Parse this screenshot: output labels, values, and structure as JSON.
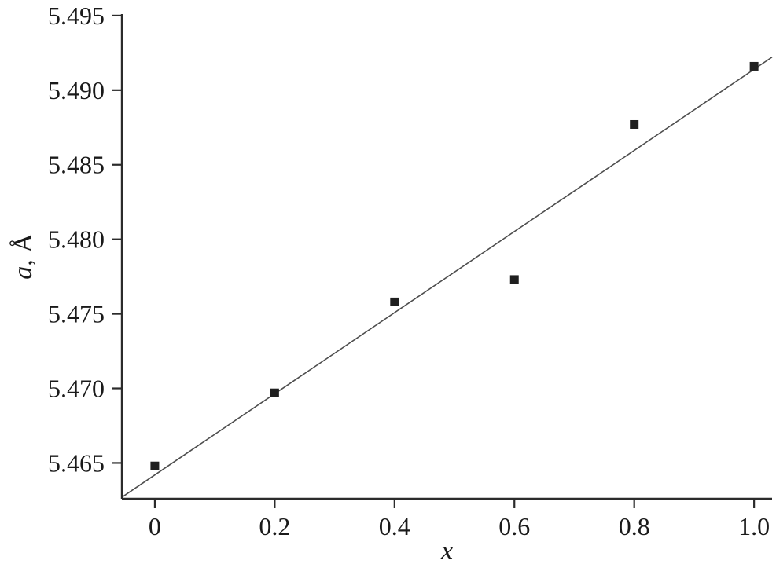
{
  "chart_data": {
    "type": "scatter",
    "title": "",
    "xlabel": "x",
    "ylabel": "a, Å",
    "ylabel_italic_part": "a",
    "ylabel_normal_part": ", Å",
    "x": [
      0,
      0.2,
      0.4,
      0.6,
      0.8,
      1.0
    ],
    "y": [
      5.4648,
      5.4697,
      5.4758,
      5.4773,
      5.4877,
      5.4916
    ],
    "fit_line": {
      "intercept": 5.4642,
      "slope": 0.0272
    },
    "xlim": [
      -0.055,
      1.03
    ],
    "ylim": [
      5.4626,
      5.4951
    ],
    "xticks": [
      0,
      0.2,
      0.4,
      0.6,
      0.8,
      1.0
    ],
    "xtick_labels": [
      "0",
      "0.2",
      "0.4",
      "0.6",
      "0.8",
      "1.0"
    ],
    "yticks": [
      5.465,
      5.47,
      5.475,
      5.48,
      5.485,
      5.49,
      5.495
    ],
    "ytick_labels": [
      "5.465",
      "5.470",
      "5.475",
      "5.480",
      "5.485",
      "5.490",
      "5.495"
    ],
    "grid": false,
    "legend": null,
    "marker": {
      "shape": "square",
      "size": 11,
      "color": "#1f1f1f"
    },
    "line_color": "#4d4d4d",
    "axis_color": "#2b2b2b"
  }
}
